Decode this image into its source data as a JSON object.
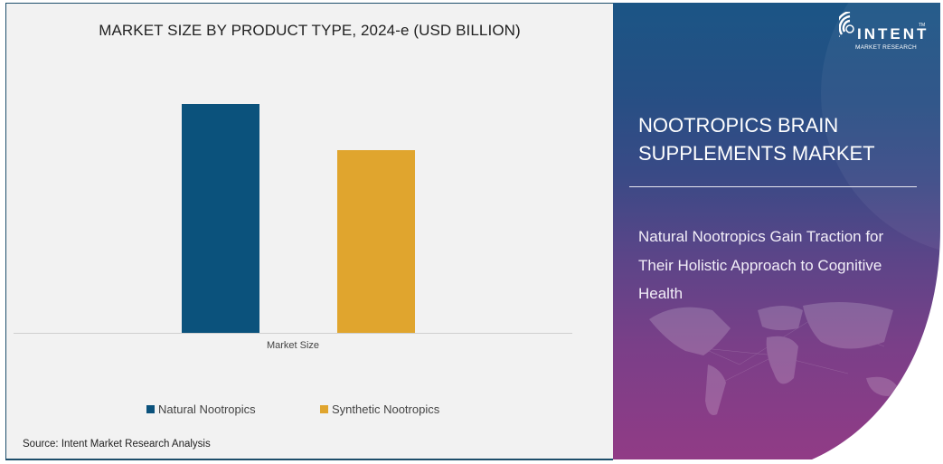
{
  "chart_data": {
    "type": "bar",
    "title": "MARKET SIZE BY PRODUCT TYPE, 2024-e (USD BILLION)",
    "categories": [
      "Market Size"
    ],
    "series": [
      {
        "name": "Natural Nootropics",
        "values": [
          100
        ],
        "color": "#0b527c"
      },
      {
        "name": "Synthetic Nootropics",
        "values": [
          80
        ],
        "color": "#e0a52e"
      }
    ],
    "xlabel": "",
    "ylabel": "",
    "ylim": [
      0,
      120
    ],
    "grid": false,
    "axis_labels_shown": false,
    "legend_position": "bottom",
    "note": "Relative bar heights only; no numeric axis shown"
  },
  "chart": {
    "title": "MARKET SIZE BY PRODUCT TYPE, 2024-e (USD BILLION)",
    "x_label": "Market Size",
    "legend": [
      {
        "label": "Natural Nootropics",
        "color": "#0b527c"
      },
      {
        "label": "Synthetic Nootropics",
        "color": "#e0a52e"
      }
    ],
    "source": "Source: Intent Market Research Analysis"
  },
  "side_panel": {
    "logo": {
      "name": "INTENT",
      "sub": "MARKET RESEARCH",
      "tm": "TM"
    },
    "title": "NOOTROPICS BRAIN SUPPLEMENTS MARKET",
    "subtitle": "Natural Nootropics Gain Traction for Their Holistic Approach to Cognitive Health"
  }
}
